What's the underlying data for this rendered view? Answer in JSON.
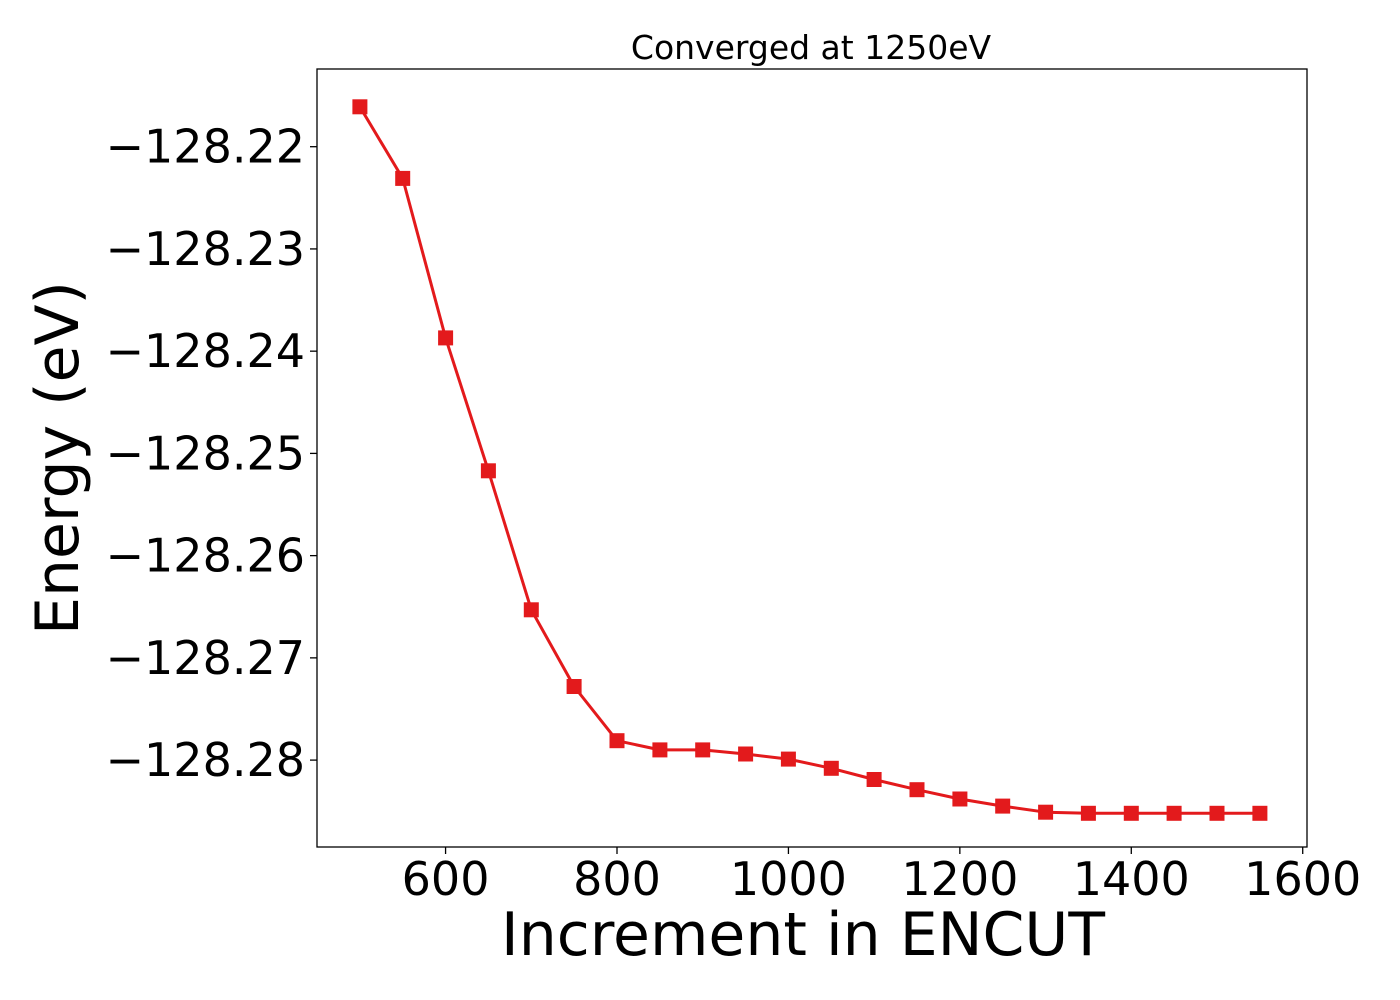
{
  "chart_data": {
    "type": "line",
    "title": "Converged at 1250eV",
    "xlabel": "Increment in ENCUT",
    "ylabel": "Energy (eV)",
    "xlim": [
      450,
      1605
    ],
    "ylim": [
      -128.2885,
      -128.2124
    ],
    "xticks": [
      600,
      800,
      1000,
      1200,
      1400,
      1600
    ],
    "xtick_labels": [
      "600",
      "800",
      "1000",
      "1200",
      "1400",
      "1600"
    ],
    "yticks": [
      -128.22,
      -128.23,
      -128.24,
      -128.25,
      -128.26,
      -128.27,
      -128.28
    ],
    "ytick_labels": [
      "−128.22",
      "−128.23",
      "−128.24",
      "−128.25",
      "−128.26",
      "−128.27",
      "−128.28"
    ],
    "grid": false,
    "series": [
      {
        "color": "#e31a1c",
        "marker": "square",
        "x": [
          500,
          550,
          600,
          650,
          700,
          750,
          800,
          850,
          900,
          950,
          1000,
          1050,
          1100,
          1150,
          1200,
          1250,
          1300,
          1350,
          1400,
          1450,
          1500,
          1550
        ],
        "y": [
          -128.2161,
          -128.2231,
          -128.2387,
          -128.2517,
          -128.2653,
          -128.2728,
          -128.2781,
          -128.279,
          -128.279,
          -128.2794,
          -128.2799,
          -128.2808,
          -128.2819,
          -128.2829,
          -128.2838,
          -128.2845,
          -128.2851,
          -128.2852,
          -128.2852,
          -128.2852,
          -128.2852,
          -128.2852
        ]
      }
    ]
  }
}
